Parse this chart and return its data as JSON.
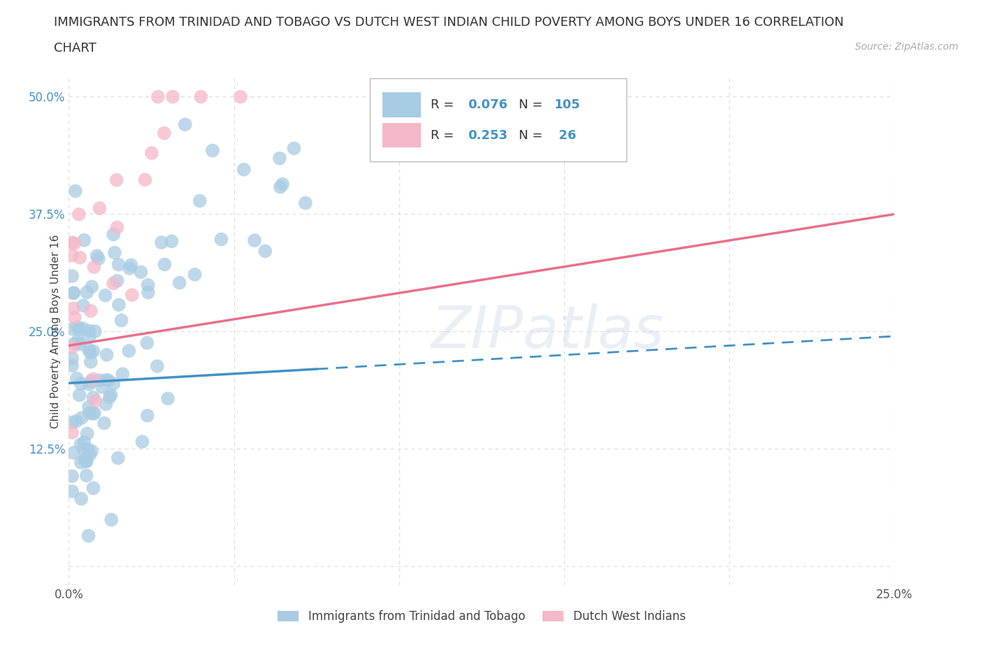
{
  "title_line1": "IMMIGRANTS FROM TRINIDAD AND TOBAGO VS DUTCH WEST INDIAN CHILD POVERTY AMONG BOYS UNDER 16 CORRELATION",
  "title_line2": "CHART",
  "source": "Source: ZipAtlas.com",
  "ylabel": "Child Poverty Among Boys Under 16",
  "xlim": [
    0.0,
    0.25
  ],
  "ylim": [
    -0.02,
    0.52
  ],
  "xticks": [
    0.0,
    0.05,
    0.1,
    0.15,
    0.2,
    0.25
  ],
  "yticks": [
    0.0,
    0.125,
    0.25,
    0.375,
    0.5
  ],
  "xtick_labels": [
    "0.0%",
    "",
    "",
    "",
    "",
    "25.0%"
  ],
  "ytick_labels": [
    "",
    "12.5%",
    "25.0%",
    "37.5%",
    "50.0%"
  ],
  "color_blue": "#a8cce4",
  "color_pink": "#f5b8c8",
  "color_blue_line": "#4292c6",
  "color_pink_line": "#e8708a",
  "color_text_blue": "#4292c6",
  "watermark": "ZIPatlas",
  "grid_color": "#dddddd",
  "title_fontsize": 13,
  "axis_label_fontsize": 11,
  "tick_fontsize": 12,
  "blue_line_y": [
    0.195,
    0.245
  ],
  "pink_line_y": [
    0.235,
    0.375
  ]
}
